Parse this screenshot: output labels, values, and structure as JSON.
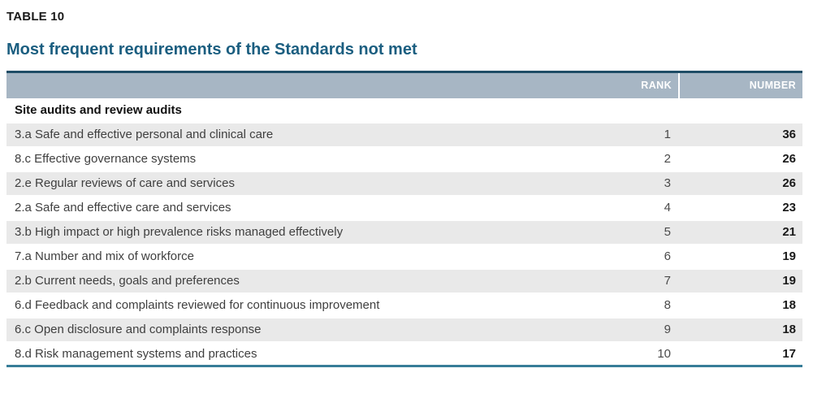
{
  "page": {
    "table_label": "TABLE 10",
    "title": "Most frequent requirements of the Standards not met"
  },
  "table": {
    "columns": {
      "requirement": "",
      "rank": "RANK",
      "number": "NUMBER"
    },
    "section_header": "Site audits and review audits",
    "rows": [
      {
        "requirement": "3.a Safe and effective personal and clinical care",
        "rank": "1",
        "number": "36"
      },
      {
        "requirement": "8.c Effective governance systems",
        "rank": "2",
        "number": "26"
      },
      {
        "requirement": "2.e Regular reviews of care and services",
        "rank": "3",
        "number": "26"
      },
      {
        "requirement": "2.a Safe and effective care and services",
        "rank": "4",
        "number": "23"
      },
      {
        "requirement": "3.b High impact or high prevalence risks managed effectively",
        "rank": "5",
        "number": "21"
      },
      {
        "requirement": "7.a Number and mix of workforce",
        "rank": "6",
        "number": "19"
      },
      {
        "requirement": "2.b Current needs, goals and preferences",
        "rank": "7",
        "number": "19"
      },
      {
        "requirement": "6.d Feedback and complaints reviewed for continuous improvement",
        "rank": "8",
        "number": "18"
      },
      {
        "requirement": "6.c Open disclosure and complaints response",
        "rank": "9",
        "number": "18"
      },
      {
        "requirement": "8.d Risk management systems and practices",
        "rank": "10",
        "number": "17"
      }
    ]
  },
  "colors": {
    "title_text": "#1b5e80",
    "header_background": "#a7b6c4",
    "header_text": "#ffffff",
    "table_top_border": "#1f4d66",
    "table_bottom_border": "#377d98",
    "row_stripe": "#e9e9e9",
    "body_text": "#3f3f3f"
  }
}
